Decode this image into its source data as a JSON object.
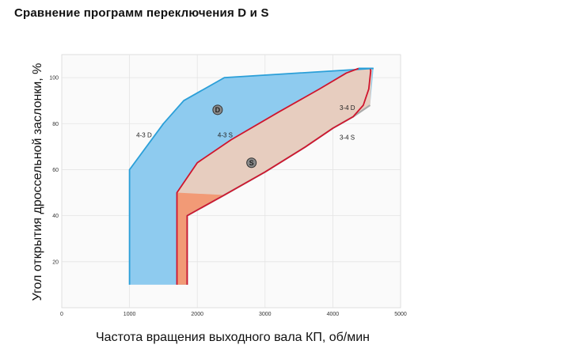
{
  "chart_data": {
    "type": "area",
    "title": "Сравнение программ переключения D и S",
    "xlabel": "Частота вращения выходного вала КП, об/мин",
    "ylabel": "Угол открытия дроссельной заслонки, %",
    "xlim": [
      0,
      5000
    ],
    "ylim": [
      0,
      110
    ],
    "xticks": [
      0,
      1000,
      2000,
      3000,
      4000,
      5000
    ],
    "yticks": [
      20,
      40,
      60,
      80,
      100
    ],
    "grid": true,
    "colors": {
      "D_fill": "#8ecbef",
      "D_line": "#2b9fd8",
      "S_fill": "#f29a76",
      "S_line": "#d0152d",
      "overlap_fill": "#e7cdbf",
      "gray_line": "#a9a9a9",
      "grid": "#e4e4e4"
    },
    "series": [
      {
        "name": "4-3 D",
        "points": [
          [
            1000,
            10
          ],
          [
            1000,
            60
          ],
          [
            1500,
            80
          ],
          [
            1800,
            90
          ],
          [
            2100,
            95
          ],
          [
            2400,
            100
          ],
          [
            4600,
            104
          ]
        ]
      },
      {
        "name": "3-4 D",
        "points": [
          [
            1850,
            10
          ],
          [
            1850,
            40
          ],
          [
            2400,
            49
          ],
          [
            3000,
            59
          ],
          [
            3600,
            70
          ],
          [
            4000,
            78
          ],
          [
            4300,
            83
          ],
          [
            4550,
            88
          ]
        ]
      },
      {
        "name": "4-3 S",
        "points": [
          [
            1700,
            10
          ],
          [
            1700,
            50
          ],
          [
            2000,
            63
          ],
          [
            2500,
            73
          ],
          [
            3200,
            85
          ],
          [
            3800,
            95
          ],
          [
            4200,
            102
          ],
          [
            4380,
            104
          ]
        ]
      },
      {
        "name": "3-4 S",
        "points": [
          [
            1850,
            10
          ],
          [
            1850,
            40
          ],
          [
            2400,
            49
          ],
          [
            3000,
            59
          ],
          [
            3600,
            70
          ],
          [
            4000,
            78
          ],
          [
            4300,
            83
          ],
          [
            4450,
            88
          ],
          [
            4530,
            95
          ],
          [
            4560,
            103
          ],
          [
            4550,
            104
          ]
        ]
      }
    ],
    "labels": [
      {
        "text": "D",
        "x": 2300,
        "y": 86,
        "circled": true
      },
      {
        "text": "S",
        "x": 2800,
        "y": 63,
        "circled": true
      },
      {
        "text": "4-3 D",
        "x": 1100,
        "y": 74
      },
      {
        "text": "4-3 S",
        "x": 2300,
        "y": 74
      },
      {
        "text": "3-4 D",
        "x": 4100,
        "y": 86
      },
      {
        "text": "3-4 S",
        "x": 4100,
        "y": 73
      }
    ]
  }
}
